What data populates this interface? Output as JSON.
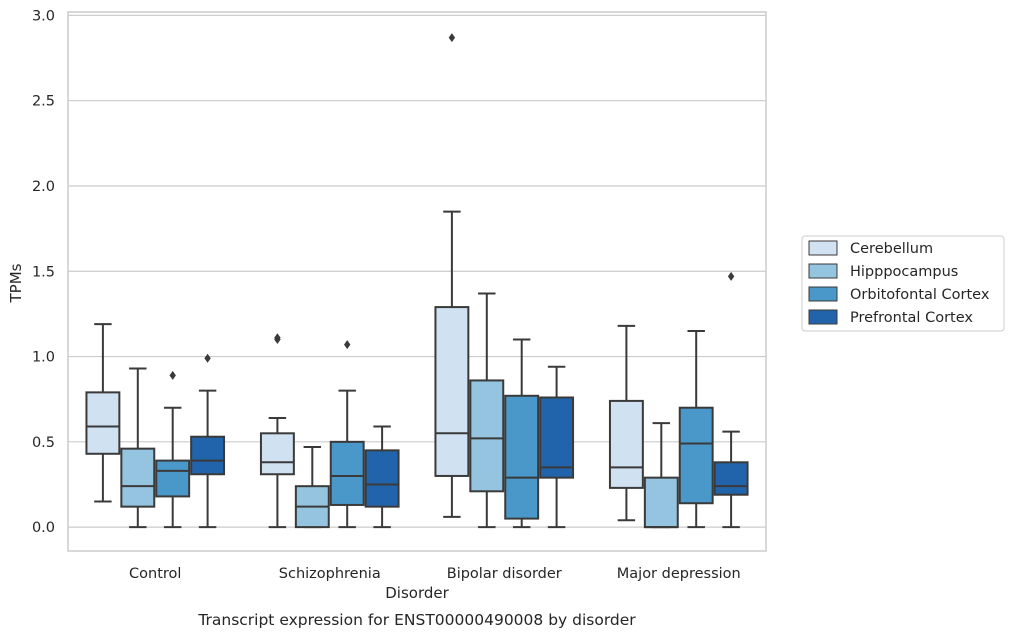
{
  "chart_data": {
    "type": "boxplot",
    "title": "Transcript expression for ENST00000490008 by disorder",
    "xlabel": "Disorder",
    "ylabel": "TPMs",
    "ylim": [
      -0.14,
      3.02
    ],
    "yticks": [
      0.0,
      0.5,
      1.0,
      1.5,
      2.0,
      2.5,
      3.0
    ],
    "ytick_labels": [
      "0.0",
      "0.5",
      "1.0",
      "1.5",
      "2.0",
      "2.5",
      "3.0"
    ],
    "grid": "horizontal",
    "legend_position": "right",
    "categories": [
      "Control",
      "Schizophrenia",
      "Bipolar disorder",
      "Major depression"
    ],
    "series": [
      {
        "name": "Cerebellum",
        "color": "#d0e1f2",
        "boxes": [
          {
            "whislo": 0.15,
            "q1": 0.43,
            "med": 0.59,
            "q3": 0.79,
            "whishi": 1.19,
            "fliers": []
          },
          {
            "whislo": 0.0,
            "q1": 0.31,
            "med": 0.38,
            "q3": 0.55,
            "whishi": 0.64,
            "fliers": [
              1.1,
              1.11
            ]
          },
          {
            "whislo": 0.06,
            "q1": 0.3,
            "med": 0.55,
            "q3": 1.29,
            "whishi": 1.85,
            "fliers": [
              2.87
            ]
          },
          {
            "whislo": 0.04,
            "q1": 0.23,
            "med": 0.35,
            "q3": 0.74,
            "whishi": 1.18,
            "fliers": []
          }
        ]
      },
      {
        "name": "Hipppocampus",
        "color": "#94c4df",
        "boxes": [
          {
            "whislo": 0.0,
            "q1": 0.12,
            "med": 0.24,
            "q3": 0.46,
            "whishi": 0.93,
            "fliers": []
          },
          {
            "whislo": 0.0,
            "q1": 0.0,
            "med": 0.12,
            "q3": 0.24,
            "whishi": 0.47,
            "fliers": []
          },
          {
            "whislo": 0.0,
            "q1": 0.21,
            "med": 0.52,
            "q3": 0.86,
            "whishi": 1.37,
            "fliers": []
          },
          {
            "whislo": 0.0,
            "q1": 0.0,
            "med": 0.0,
            "q3": 0.29,
            "whishi": 0.61,
            "fliers": []
          }
        ]
      },
      {
        "name": "Orbitofontal Cortex",
        "color": "#4a98c9",
        "boxes": [
          {
            "whislo": 0.0,
            "q1": 0.18,
            "med": 0.33,
            "q3": 0.39,
            "whishi": 0.7,
            "fliers": [
              0.89
            ]
          },
          {
            "whislo": 0.0,
            "q1": 0.13,
            "med": 0.3,
            "q3": 0.5,
            "whishi": 0.8,
            "fliers": [
              1.07
            ]
          },
          {
            "whislo": 0.0,
            "q1": 0.05,
            "med": 0.29,
            "q3": 0.77,
            "whishi": 1.1,
            "fliers": []
          },
          {
            "whislo": 0.0,
            "q1": 0.14,
            "med": 0.49,
            "q3": 0.7,
            "whishi": 1.15,
            "fliers": []
          }
        ]
      },
      {
        "name": "Prefrontal Cortex",
        "color": "#2164ab",
        "boxes": [
          {
            "whislo": 0.0,
            "q1": 0.31,
            "med": 0.39,
            "q3": 0.53,
            "whishi": 0.8,
            "fliers": [
              0.99
            ]
          },
          {
            "whislo": 0.0,
            "q1": 0.12,
            "med": 0.25,
            "q3": 0.45,
            "whishi": 0.59,
            "fliers": []
          },
          {
            "whislo": 0.0,
            "q1": 0.29,
            "med": 0.35,
            "q3": 0.76,
            "whishi": 0.94,
            "fliers": []
          },
          {
            "whislo": 0.0,
            "q1": 0.19,
            "med": 0.24,
            "q3": 0.38,
            "whishi": 0.56,
            "fliers": [
              1.47
            ]
          }
        ]
      }
    ]
  }
}
